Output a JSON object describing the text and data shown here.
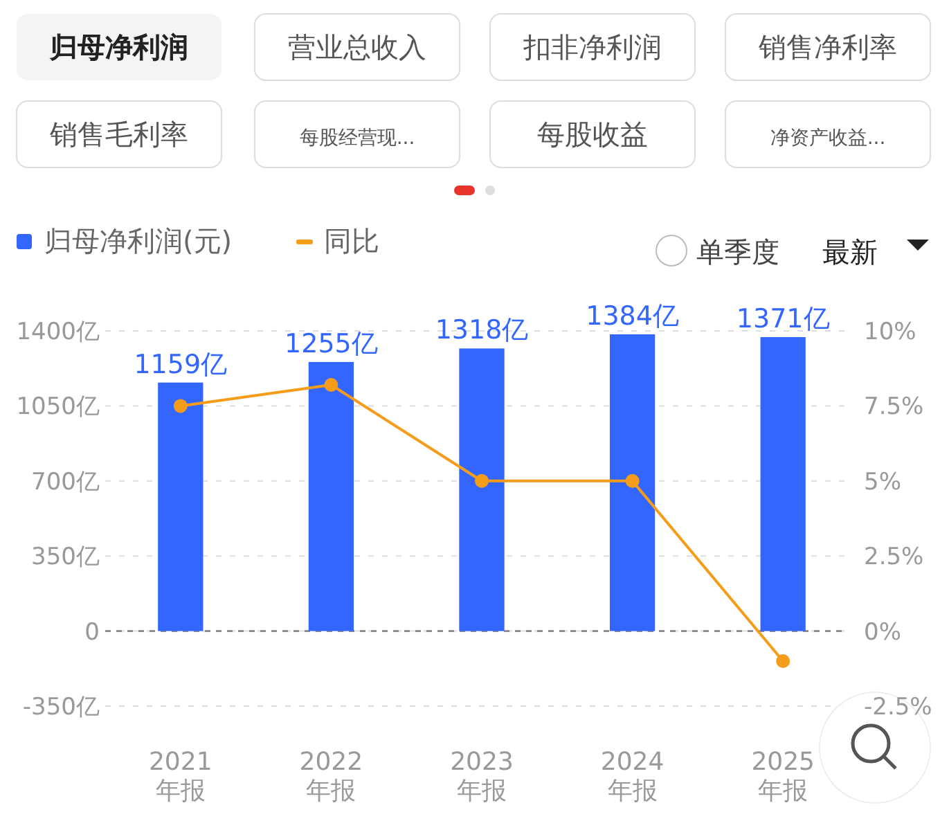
{
  "chart_data": {
    "type": "bar",
    "categories": [
      "2021\n年报",
      "2022\n年报",
      "2023\n年报",
      "2024\n年报",
      "2025\n年报"
    ],
    "series": [
      {
        "name": "归母净利润(元)",
        "color": "#3366ff",
        "values": [
          1159,
          1255,
          1318,
          1384,
          1371
        ],
        "value_labels": [
          "1159亿",
          "1255亿",
          "1318亿",
          "1384亿",
          "1371亿"
        ]
      },
      {
        "name": "同比",
        "type": "line",
        "axis": "y2",
        "color": "#f59c1a",
        "values": [
          7.5,
          8.2,
          5.0,
          5.0,
          -1.0
        ],
        "marker": "circle",
        "line_style": "solid"
      }
    ],
    "ylim": [
      -350,
      1400
    ],
    "yticks": [
      {
        "value": -350,
        "label": "-350亿"
      },
      0,
      {
        "value": 350,
        "label": "350亿"
      },
      {
        "value": 700,
        "label": "700亿"
      },
      {
        "value": 1050,
        "label": "1050亿"
      },
      {
        "value": 1400,
        "label": "1400亿"
      }
    ],
    "y2lim": [
      -2.5,
      10
    ],
    "y2ticks": [
      {
        "value": -2.5,
        "label": "-2.5%"
      },
      {
        "value": 0,
        "label": "0%"
      },
      {
        "value": 2.5,
        "label": "2.5%"
      },
      {
        "value": 5,
        "label": "5%"
      },
      {
        "value": 7.5,
        "label": "7.5%"
      },
      {
        "value": 10,
        "label": "10%"
      }
    ],
    "grid": "y",
    "legend": "top left",
    "ref_lines": [
      {
        "axis": "y",
        "value": 0,
        "color": "#888888",
        "line_style": "dashed"
      }
    ],
    "annotations": [
      "归母净利润",
      "营业总收入",
      "扣非净利润",
      "销售净利率",
      "销售毛利率",
      "每股经营现...",
      "每股收益",
      "净资产收益...",
      "单季度",
      "最新"
    ]
  }
}
